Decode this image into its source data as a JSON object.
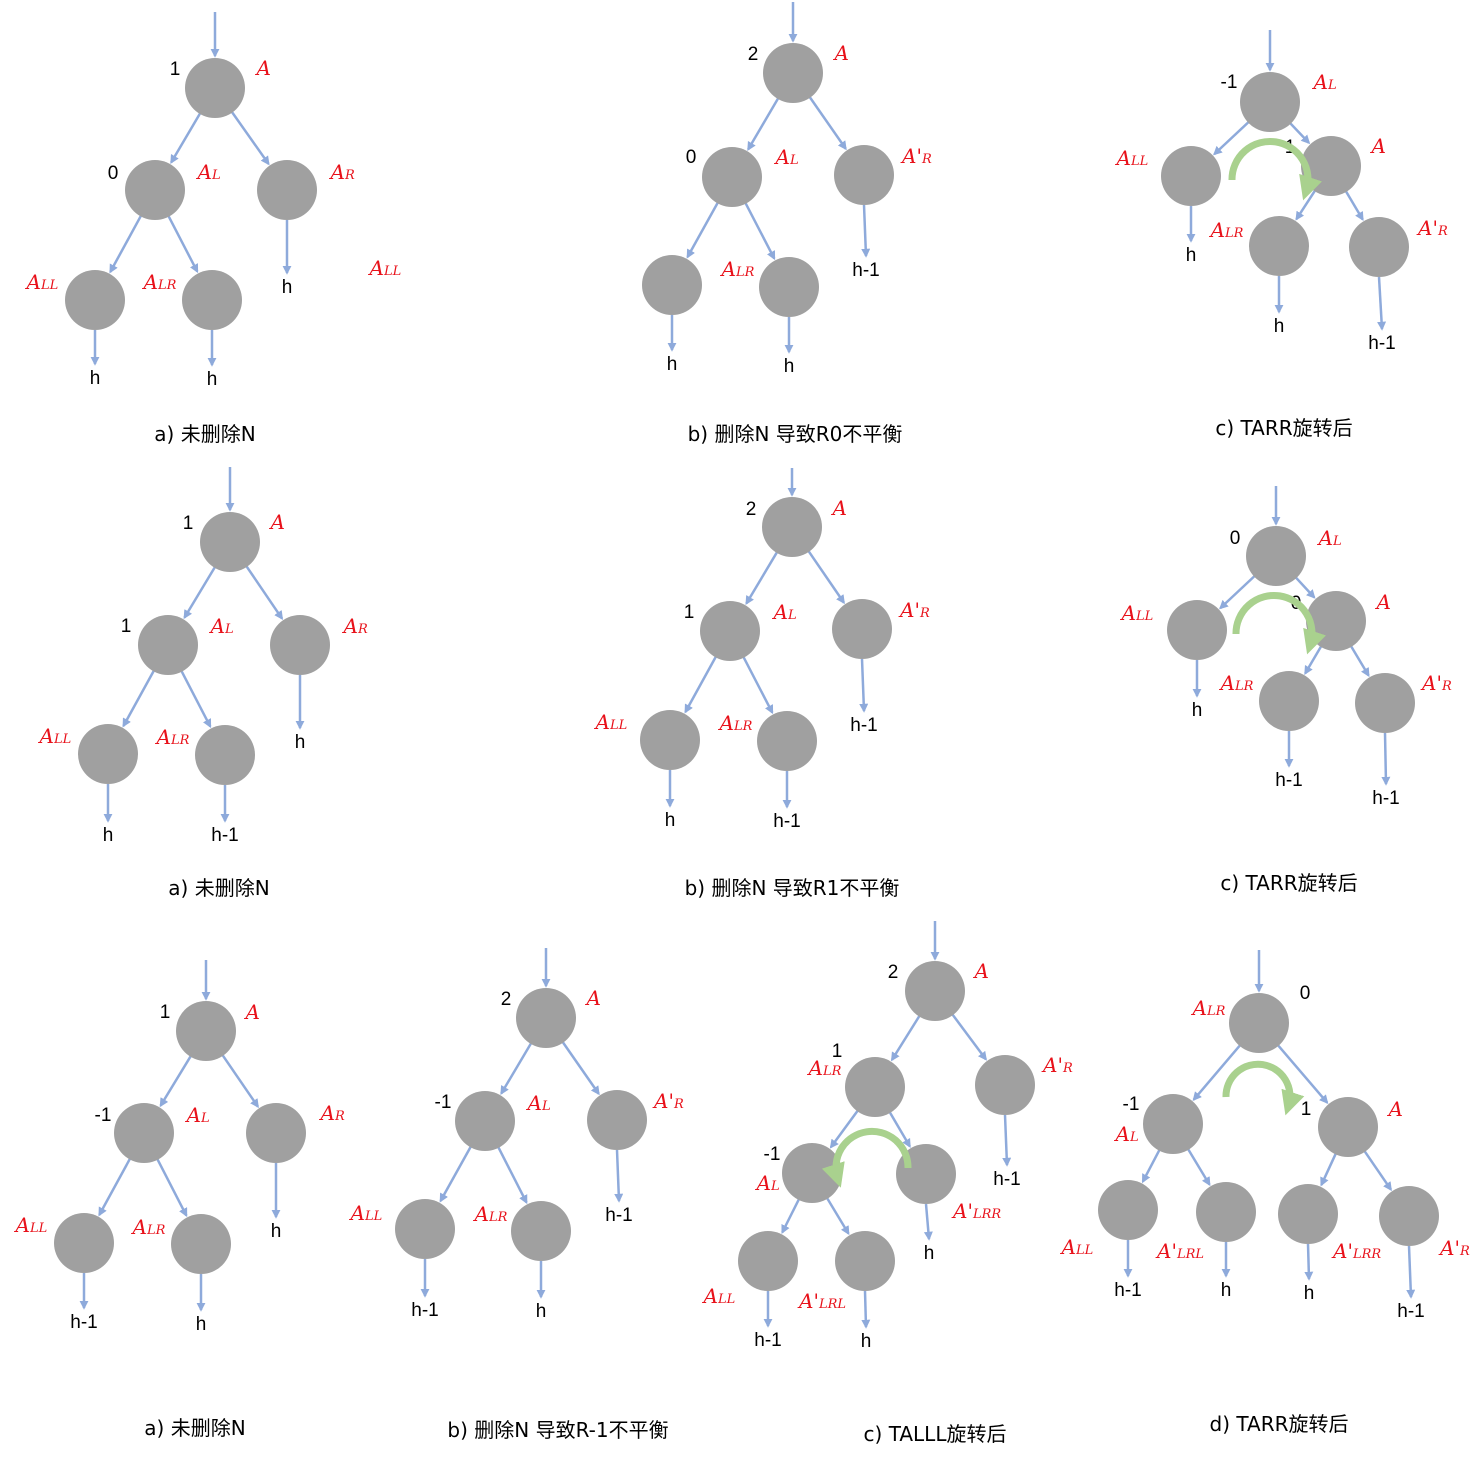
{
  "colors": {
    "node": "#a0a0a0",
    "edge": "#8eaadb",
    "label": "#e8111a",
    "rotation": "#a9d18e",
    "text": "#000000"
  },
  "panels": [
    {
      "id": "r0a",
      "caption": "a) 未删除N",
      "nodes": [
        {
          "id": "A",
          "label": "A",
          "bf": "1"
        },
        {
          "id": "AL",
          "label": "AL",
          "bf": "0"
        },
        {
          "id": "AR",
          "label": "AR"
        },
        {
          "id": "ALL",
          "label": "ALL"
        },
        {
          "id": "ALR",
          "label": "ALR"
        }
      ],
      "heights": [
        "h",
        "h",
        "h"
      ],
      "extra_labels": [
        "ALL"
      ]
    },
    {
      "id": "r0b",
      "caption": "b) 删除N 导致R0不平衡",
      "nodes": [
        {
          "id": "A",
          "label": "A",
          "bf": "2"
        },
        {
          "id": "AL",
          "label": "AL",
          "bf": "0"
        },
        {
          "id": "A'R",
          "label": "A'R"
        },
        {
          "id": "ALL",
          "label": ""
        },
        {
          "id": "ALR",
          "label": "ALR"
        }
      ],
      "heights": [
        "h",
        "h",
        "h-1"
      ]
    },
    {
      "id": "r0c",
      "caption": "c) TARR旋转后",
      "nodes": [
        {
          "id": "AL",
          "label": "AL",
          "bf": "-1"
        },
        {
          "id": "ALL",
          "label": "ALL"
        },
        {
          "id": "A",
          "label": "A",
          "bf": "1"
        },
        {
          "id": "ALR",
          "label": "ALR"
        },
        {
          "id": "A'R",
          "label": "A'R"
        }
      ],
      "heights": [
        "h",
        "h",
        "h-1"
      ]
    },
    {
      "id": "r1a",
      "caption": "a) 未删除N",
      "nodes": [
        {
          "id": "A",
          "label": "A",
          "bf": "1"
        },
        {
          "id": "AL",
          "label": "AL",
          "bf": "1"
        },
        {
          "id": "AR",
          "label": "AR"
        },
        {
          "id": "ALL",
          "label": "ALL"
        },
        {
          "id": "ALR",
          "label": "ALR"
        }
      ],
      "heights": [
        "h",
        "h-1",
        "h"
      ]
    },
    {
      "id": "r1b",
      "caption": "b) 删除N 导致R1不平衡",
      "nodes": [
        {
          "id": "A",
          "label": "A",
          "bf": "2"
        },
        {
          "id": "AL",
          "label": "AL",
          "bf": "1"
        },
        {
          "id": "A'R",
          "label": "A'R"
        },
        {
          "id": "ALL",
          "label": "ALL"
        },
        {
          "id": "ALR",
          "label": "ALR"
        }
      ],
      "heights": [
        "h",
        "h-1",
        "h-1"
      ]
    },
    {
      "id": "r1c",
      "caption": "c) TARR旋转后",
      "nodes": [
        {
          "id": "AL",
          "label": "AL",
          "bf": "0"
        },
        {
          "id": "ALL",
          "label": "ALL"
        },
        {
          "id": "A",
          "label": "A",
          "bf": "0"
        },
        {
          "id": "ALR",
          "label": "ALR"
        },
        {
          "id": "A'R",
          "label": "A'R"
        }
      ],
      "heights": [
        "h",
        "h-1",
        "h-1"
      ]
    },
    {
      "id": "r2a",
      "caption": "a) 未删除N",
      "nodes": [
        {
          "id": "A",
          "label": "A",
          "bf": "1"
        },
        {
          "id": "AL",
          "label": "AL",
          "bf": "-1"
        },
        {
          "id": "AR",
          "label": "AR"
        },
        {
          "id": "ALL",
          "label": "ALL"
        },
        {
          "id": "ALR",
          "label": "ALR"
        }
      ],
      "heights": [
        "h-1",
        "h",
        "h"
      ]
    },
    {
      "id": "r2b",
      "caption": "b) 删除N 导致R-1不平衡",
      "nodes": [
        {
          "id": "A",
          "label": "A",
          "bf": "2"
        },
        {
          "id": "AL",
          "label": "AL",
          "bf": "-1"
        },
        {
          "id": "A'R",
          "label": "A'R"
        },
        {
          "id": "ALL",
          "label": "ALL"
        },
        {
          "id": "ALR",
          "label": "ALR"
        }
      ],
      "heights": [
        "h-1",
        "h",
        "h-1"
      ]
    },
    {
      "id": "r2c",
      "caption": "c) TALLL旋转后",
      "nodes": [
        {
          "id": "A",
          "label": "A",
          "bf": "2"
        },
        {
          "id": "ALR",
          "label": "ALR",
          "bf": "1"
        },
        {
          "id": "A'R",
          "label": "A'R"
        },
        {
          "id": "AL",
          "label": "AL",
          "bf": "-1"
        },
        {
          "id": "A'LRR",
          "label": "A'LRR"
        },
        {
          "id": "ALL",
          "label": "ALL"
        },
        {
          "id": "A'LRL",
          "label": "A'LRL"
        }
      ],
      "heights": [
        "h-1",
        "h",
        "h",
        "h-1"
      ]
    },
    {
      "id": "r2d",
      "caption": "d) TARR旋转后",
      "nodes": [
        {
          "id": "ALR",
          "label": "ALR",
          "bf": "0"
        },
        {
          "id": "AL",
          "label": "AL",
          "bf": "-1"
        },
        {
          "id": "A",
          "label": "A",
          "bf": "1"
        },
        {
          "id": "ALL",
          "label": "ALL"
        },
        {
          "id": "A'LRL",
          "label": "A'LRL"
        },
        {
          "id": "A'LRR",
          "label": "A'LRR"
        },
        {
          "id": "A'R",
          "label": "A'R"
        }
      ],
      "heights": [
        "h-1",
        "h",
        "h",
        "h-1"
      ]
    }
  ]
}
